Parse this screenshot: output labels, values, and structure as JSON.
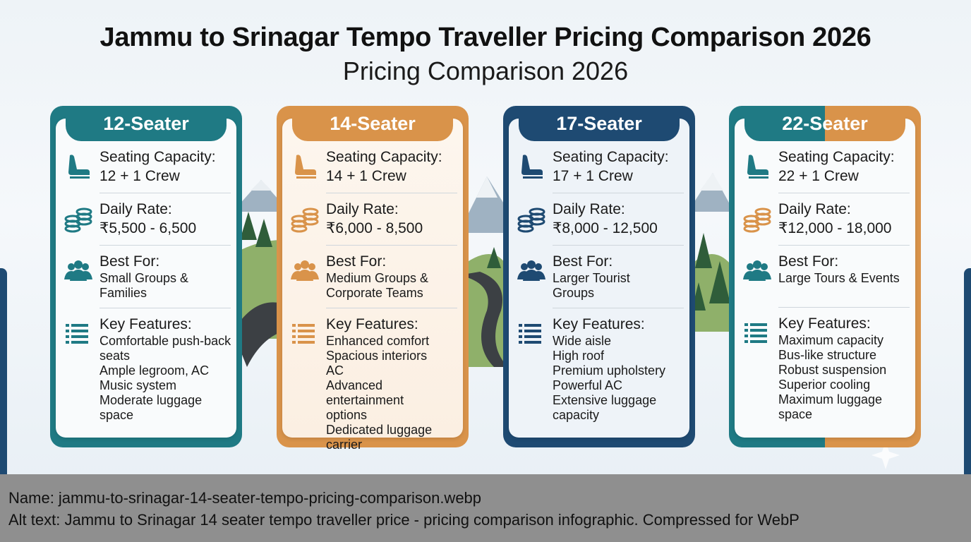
{
  "title": "Jammu to Srinagar Tempo Traveller Pricing Comparison 2026",
  "subtitle": "Pricing Comparison 2026",
  "cards": [
    {
      "header": "12-Seater",
      "capacity_label": "Seating Capacity:",
      "capacity_value": "12 + 1 Crew",
      "rate_label": "Daily Rate:",
      "rate_value": "₹5,500 - 6,500",
      "best_label": "Best For:",
      "best_lines": [
        "Small Groups &",
        "Families"
      ],
      "features_label": "Key Features:",
      "features": [
        "Comfortable push-back",
        "seats",
        "Ample legroom, AC",
        "Music system",
        "Moderate luggage space"
      ]
    },
    {
      "header": "14-Seater",
      "capacity_label": "Seating Capacity:",
      "capacity_value": "14 + 1 Crew",
      "rate_label": "Daily Rate:",
      "rate_value": "₹6,000 - 8,500",
      "best_label": "Best For:",
      "best_lines": [
        "Medium Groups &",
        "Corporate Teams"
      ],
      "features_label": "Key Features:",
      "features": [
        "Enhanced comfort",
        "Spacious interiors",
        "AC",
        "Advanced entertainment",
        "options",
        "Dedicated luggage carrier"
      ]
    },
    {
      "header": "17-Seater",
      "capacity_label": "Seating Capacity:",
      "capacity_value": "17 + 1 Crew",
      "rate_label": "Daily Rate:",
      "rate_value": "₹8,000 - 12,500",
      "best_label": "Best For:",
      "best_lines": [
        "Larger Tourist",
        "Groups"
      ],
      "features_label": "Key Features:",
      "features": [
        "Wide aisle",
        "High roof",
        "Premium upholstery",
        "Powerful AC",
        "Extensive luggage",
        "capacity"
      ]
    },
    {
      "header": "22-Seater",
      "capacity_label": "Seating Capacity:",
      "capacity_value": "22 + 1 Crew",
      "rate_label": "Daily Rate:",
      "rate_value": "₹12,000 - 18,000",
      "best_label": "Best For:",
      "best_lines": [
        "Large Tours & Events"
      ],
      "features_label": "Key Features:",
      "features": [
        "Maximum capacity",
        "Bus-like structure",
        "Robust suspension",
        "Superior cooling",
        "Maximum luggage space"
      ]
    }
  ],
  "icons": {
    "capacity": "seat-icon",
    "rate": "coins-icon",
    "best": "group-icon",
    "features": "list-icon"
  },
  "colors": {
    "teal": "#1f7a84",
    "orange": "#d9934a",
    "navy": "#1e4a72"
  },
  "caption": {
    "name_label": "Name",
    "name_value": ": jammu-to-srinagar-14-seater-tempo-pricing-comparison.webp",
    "alt_label": "Alt text:",
    "alt_value": " Jammu to Srinagar 14 seater tempo traveller price - pricing comparison infographic. Compressed for WebP"
  }
}
